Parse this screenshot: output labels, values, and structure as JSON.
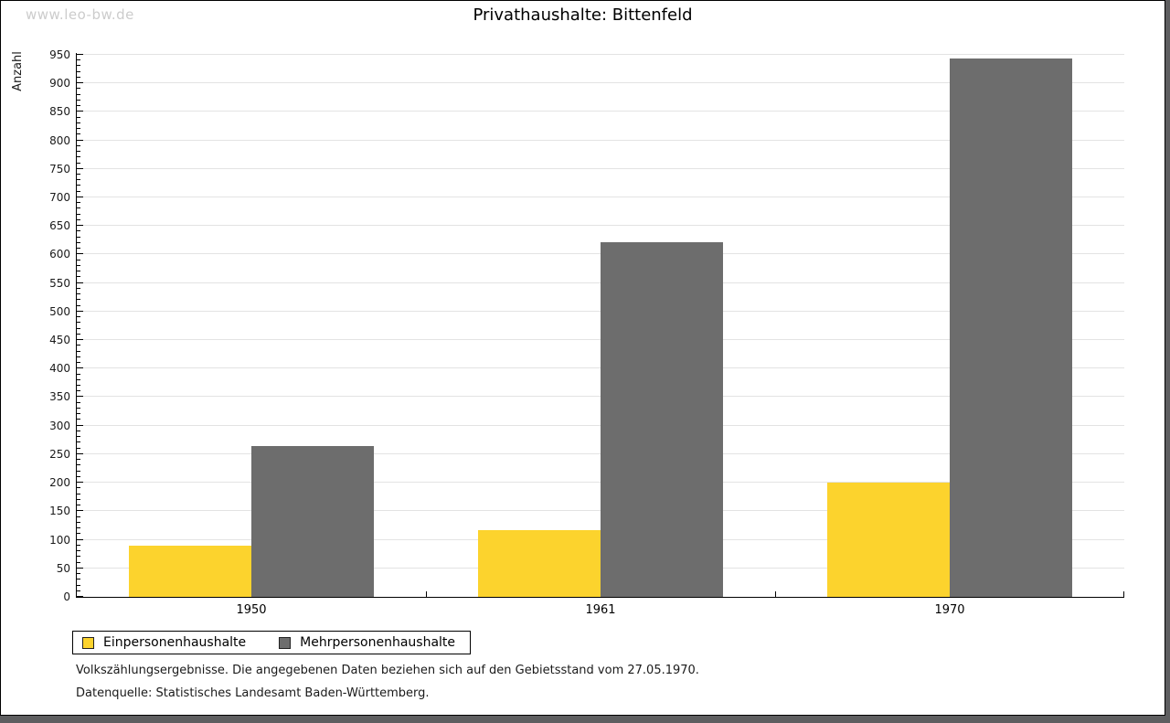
{
  "watermark": "www.leo-bw.de",
  "chart_data": {
    "type": "bar",
    "title": "Privathaushalte: Bittenfeld",
    "ylabel": "Anzahl",
    "xlabel": "",
    "categories": [
      "1950",
      "1961",
      "1970"
    ],
    "series": [
      {
        "name": "Einpersonenhaushalte",
        "color": "#fcd32d",
        "values": [
          89,
          117,
          201
        ]
      },
      {
        "name": "Mehrpersonenhaushalte",
        "color": "#6d6d6d",
        "values": [
          264,
          621,
          944
        ]
      }
    ],
    "ylim": [
      0,
      953
    ],
    "ytick_step": 50,
    "minor_tick_step": 10,
    "grid": true,
    "legend_position": "bottom-left",
    "grid_color": "#e3e3e3",
    "axis_color": "#000000"
  },
  "footer": {
    "line1": "Volkszählungsergebnisse. Die angegebenen Daten beziehen sich auf den Gebietsstand vom 27.05.1970.",
    "line2": "Datenquelle: Statistisches Landesamt Baden-Württemberg."
  }
}
